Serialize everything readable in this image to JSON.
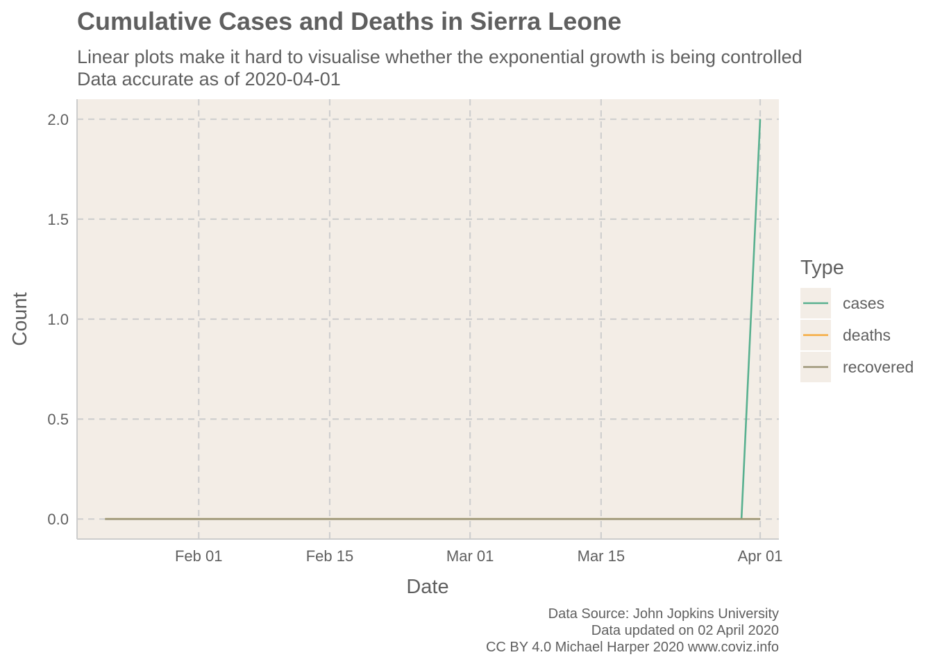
{
  "header": {
    "title": "Cumulative Cases and Deaths in Sierra Leone",
    "subtitle_line1": "Linear plots make it hard to visualise whether the exponential growth is being controlled",
    "subtitle_line2": "Data accurate as of 2020-04-01"
  },
  "caption": {
    "line1": "Data Source: John Jopkins University",
    "line2": "Data updated on 02 April 2020",
    "line3": "CC BY 4.0 Michael Harper 2020 www.coviz.info"
  },
  "colors": {
    "panel": "#f3ede6",
    "grid": "#cfcfcf",
    "axis": "#cccccc",
    "text": "#5f5f5f"
  },
  "chart_data": {
    "type": "line",
    "title": "Cumulative Cases and Deaths in Sierra Leone",
    "xlabel": "Date",
    "ylabel": "Count",
    "x_type": "date",
    "xlim": [
      "2020-01-19",
      "2020-04-03"
    ],
    "ylim": [
      -0.1,
      2.1
    ],
    "x_ticks": [
      {
        "date": "2020-02-01",
        "label": "Feb 01"
      },
      {
        "date": "2020-02-15",
        "label": "Feb 15"
      },
      {
        "date": "2020-03-01",
        "label": "Mar 01"
      },
      {
        "date": "2020-03-15",
        "label": "Mar 15"
      },
      {
        "date": "2020-04-01",
        "label": "Apr 01"
      }
    ],
    "y_ticks": [
      {
        "value": 0,
        "label": "0.0"
      },
      {
        "value": 0.5,
        "label": "0.5"
      },
      {
        "value": 1,
        "label": "1.0"
      },
      {
        "value": 1.5,
        "label": "1.5"
      },
      {
        "value": 2,
        "label": "2.0"
      }
    ],
    "grid": true,
    "grid_style": "dashed",
    "legend": {
      "title": "Type",
      "position": "right"
    },
    "series": [
      {
        "name": "cases",
        "color": "#58b08f",
        "points": [
          {
            "x": "2020-01-22",
            "y": 0
          },
          {
            "x": "2020-03-30",
            "y": 0
          },
          {
            "x": "2020-03-31",
            "y": 1
          },
          {
            "x": "2020-04-01",
            "y": 2
          }
        ]
      },
      {
        "name": "deaths",
        "color": "#f5a93b",
        "points": [
          {
            "x": "2020-01-22",
            "y": 0
          },
          {
            "x": "2020-04-01",
            "y": 0
          }
        ]
      },
      {
        "name": "recovered",
        "color": "#9b9474",
        "points": [
          {
            "x": "2020-01-22",
            "y": 0
          },
          {
            "x": "2020-04-01",
            "y": 0
          }
        ]
      }
    ]
  }
}
